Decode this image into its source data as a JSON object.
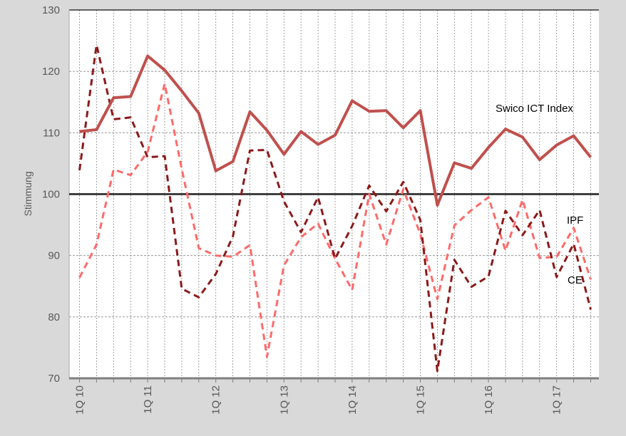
{
  "chart_data": {
    "type": "line",
    "ylabel": "Stimmung",
    "ylim": [
      70,
      130
    ],
    "yticks": [
      70,
      80,
      90,
      100,
      110,
      120,
      130
    ],
    "reference_line": 100,
    "grid": true,
    "x_tick_labels": [
      "1Q 10",
      "1Q 11",
      "1Q 12",
      "1Q 13",
      "1Q 14",
      "1Q 15",
      "1Q 16",
      "1Q 17"
    ],
    "x_tick_positions": [
      1,
      5,
      9,
      13,
      17,
      21,
      25,
      29
    ],
    "x": [
      1,
      2,
      3,
      4,
      5,
      6,
      7,
      8,
      9,
      10,
      11,
      12,
      13,
      14,
      15,
      16,
      17,
      18,
      19,
      20,
      21,
      22,
      23,
      24,
      25,
      26,
      27,
      28,
      29,
      30,
      31
    ],
    "series": [
      {
        "name": "Swico ICT Index",
        "style": "solid",
        "color": "#c0504d",
        "values": [
          110.2,
          110.5,
          115.7,
          115.9,
          122.5,
          120.2,
          116.8,
          113.2,
          103.8,
          105.3,
          113.4,
          110.4,
          106.5,
          110.2,
          108.1,
          109.6,
          115.2,
          113.5,
          113.6,
          110.8,
          113.6,
          98.2,
          105.1,
          104.2,
          107.6,
          110.6,
          109.3,
          105.6,
          108.0,
          109.5,
          106.0
        ]
      },
      {
        "name": "IPF",
        "style": "dashed",
        "color": "#8b1a1a",
        "values": [
          103.9,
          124.3,
          112.2,
          112.5,
          106.0,
          106.2,
          84.6,
          83.2,
          87.0,
          93.1,
          107.1,
          107.2,
          98.8,
          93.8,
          99.5,
          89.5,
          94.8,
          101.4,
          97.2,
          102.0,
          95.8,
          71.2,
          89.3,
          84.9,
          86.6,
          97.3,
          93.3,
          97.4,
          86.5,
          91.9,
          81.2
        ]
      },
      {
        "name": "CE",
        "style": "dashed",
        "color": "#ff6a6a",
        "values": [
          86.4,
          91.8,
          104.0,
          103.1,
          106.9,
          118.0,
          104.1,
          91.2,
          90.0,
          89.8,
          91.7,
          73.5,
          88.4,
          93.0,
          95.2,
          89.5,
          84.4,
          100.0,
          91.8,
          100.8,
          93.5,
          82.9,
          94.9,
          97.4,
          99.5,
          90.8,
          99.1,
          89.6,
          89.8,
          94.5,
          86.1
        ]
      }
    ],
    "annotations": [
      "Swico ICT Index",
      "IPF",
      "CE"
    ]
  },
  "colors": {
    "background": "#d9d9d9",
    "plot_background": "#ffffff",
    "grid": "#8a8a8a",
    "axis_text": "#595959"
  }
}
